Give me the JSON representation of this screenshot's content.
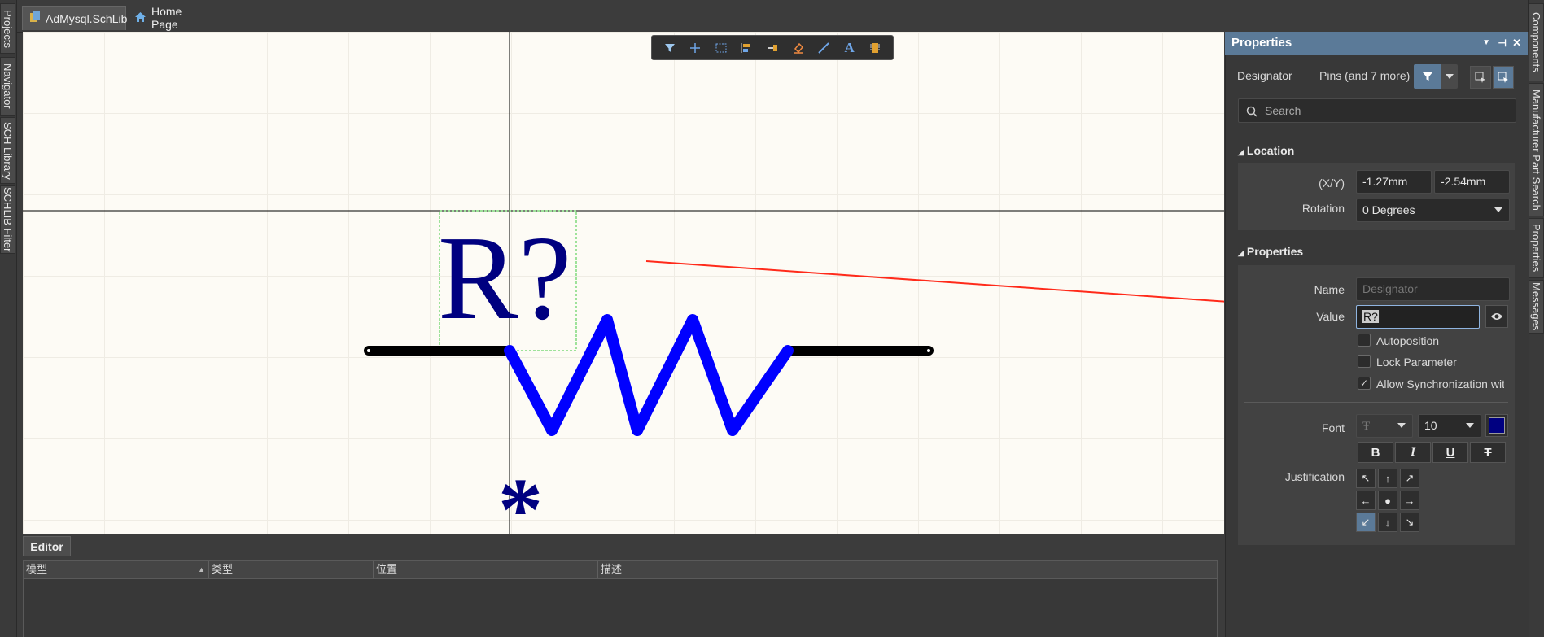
{
  "left_dock": {
    "tabs": [
      "Projects",
      "Navigator",
      "SCH Library",
      "SCHLIB Filter"
    ]
  },
  "right_dock": {
    "tabs": [
      "Components",
      "Manufacturer Part Search",
      "Properties",
      "Messages"
    ]
  },
  "tabs": {
    "active": "AdMysql.SchLib",
    "home": "Home Page"
  },
  "canvas": {
    "designator_text": "R?",
    "asterisk": "*",
    "colors": {
      "body": "#0000ff",
      "text": "#000080",
      "pin": "#000000",
      "arrow": "#ff2a1a"
    }
  },
  "toolbar_icons": [
    "filter-icon",
    "crosshair-icon",
    "select-rect-icon",
    "align-icon",
    "place-pin-icon",
    "eraser-icon",
    "line-icon",
    "text-icon",
    "part-icon"
  ],
  "editor": {
    "tab_label": "Editor",
    "columns": [
      "模型",
      "类型",
      "位置",
      "描述"
    ]
  },
  "properties": {
    "title": "Properties",
    "filter_label": "Designator",
    "filter_value": "Pins (and 7 more)",
    "search_placeholder": "Search",
    "location": {
      "section_title": "Location",
      "xy_label": "(X/Y)",
      "x": "-1.27mm",
      "y": "-2.54mm",
      "rotation_label": "Rotation",
      "rotation": "0 Degrees"
    },
    "props": {
      "section_title": "Properties",
      "name_label": "Name",
      "name_placeholder": "Designator",
      "value_label": "Value",
      "value": "R?",
      "autoposition": "Autoposition",
      "lock_parameter": "Lock Parameter",
      "allow_sync": "Allow Synchronization wit",
      "font_label": "Font",
      "font_size": "10",
      "font_color": "#000080",
      "justification_label": "Justification",
      "bold": "B",
      "italic": "I",
      "underline": "U",
      "strike": "T",
      "justify_arrows": [
        "↖",
        "↑",
        "↗",
        "←",
        "●",
        "→",
        "↙",
        "↓",
        "↘"
      ],
      "justify_selected": "↙"
    }
  }
}
